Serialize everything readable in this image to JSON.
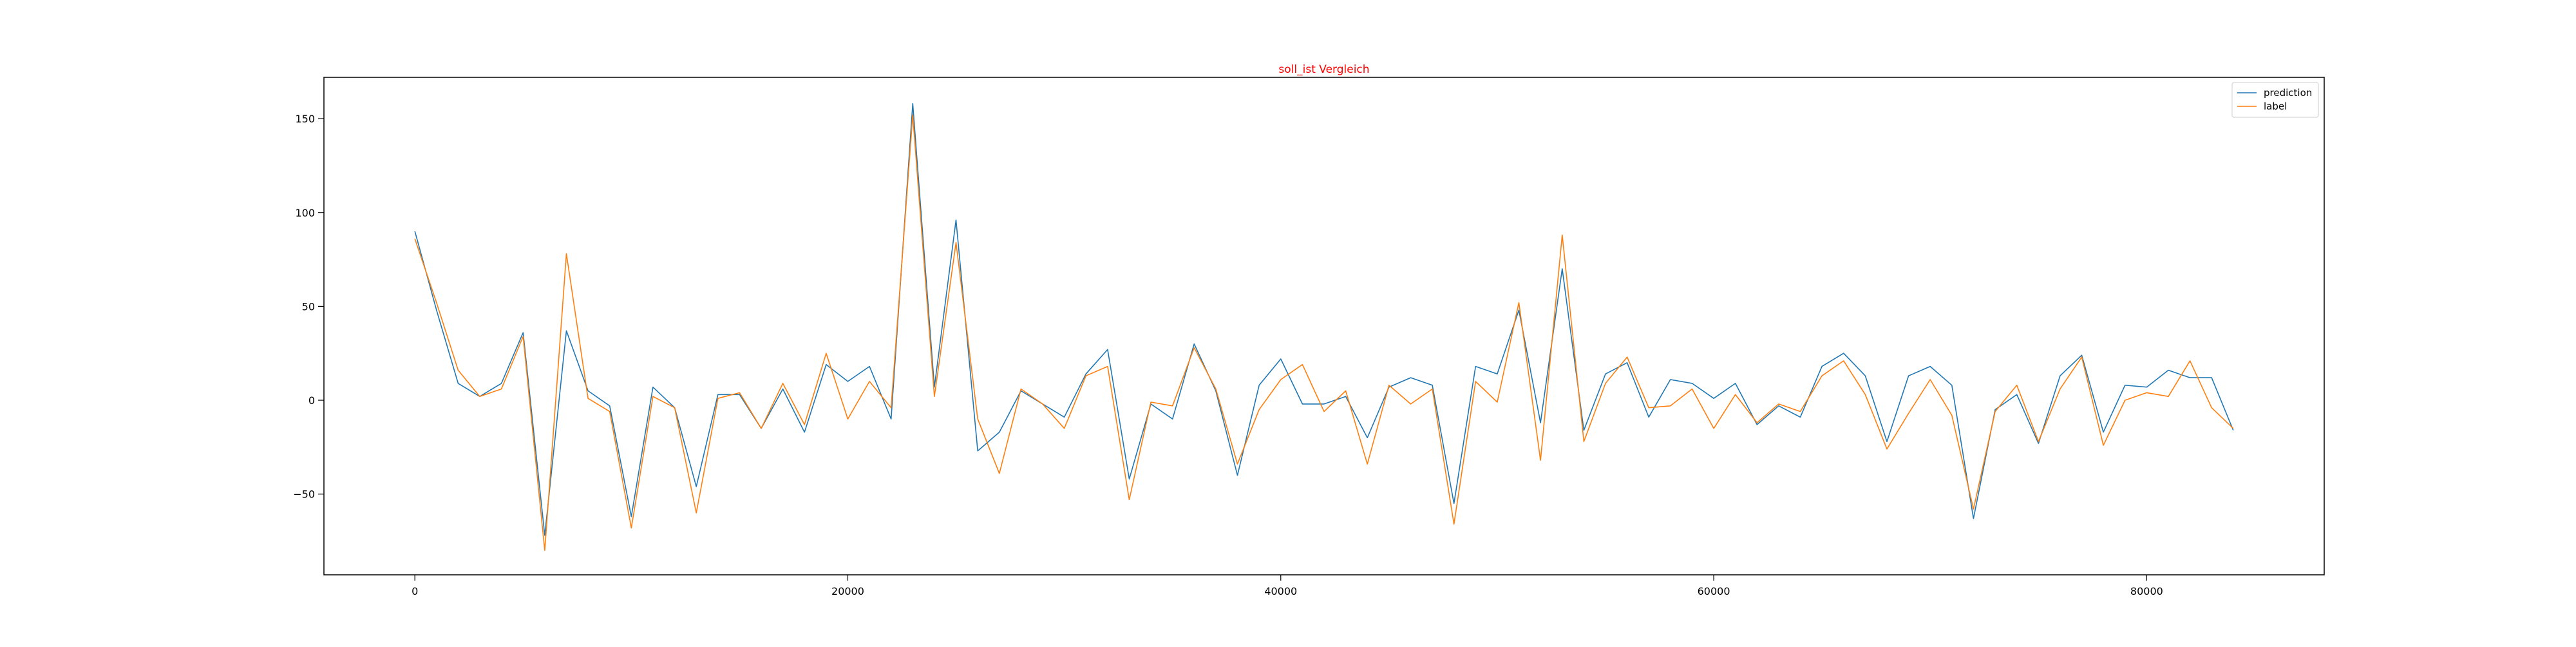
{
  "chart_data": {
    "type": "line",
    "title": "soll_ist Vergleich",
    "title_color": "#ff0000",
    "xlabel": "",
    "ylabel": "",
    "xlim": [
      -4200,
      88200
    ],
    "ylim": [
      -93,
      172
    ],
    "x_ticks": [
      0,
      20000,
      40000,
      60000,
      80000
    ],
    "y_ticks": [
      -50,
      0,
      50,
      100,
      150
    ],
    "grid": false,
    "legend_position": "top-right",
    "x": [
      0,
      1000,
      2000,
      3000,
      4000,
      5000,
      6000,
      7000,
      8000,
      9000,
      10000,
      11000,
      12000,
      13000,
      14000,
      15000,
      16000,
      17000,
      18000,
      19000,
      20000,
      21000,
      22000,
      23000,
      24000,
      25000,
      26000,
      27000,
      28000,
      29000,
      30000,
      31000,
      32000,
      33000,
      34000,
      35000,
      36000,
      37000,
      38000,
      39000,
      40000,
      41000,
      42000,
      43000,
      44000,
      45000,
      46000,
      47000,
      48000,
      49000,
      50000,
      51000,
      52000,
      53000,
      54000,
      55000,
      56000,
      57000,
      58000,
      59000,
      60000,
      61000,
      62000,
      63000,
      64000,
      65000,
      66000,
      67000,
      68000,
      69000,
      70000,
      71000,
      72000,
      73000,
      74000,
      75000,
      76000,
      77000,
      78000,
      79000,
      80000,
      81000,
      82000,
      83000,
      84000
    ],
    "series": [
      {
        "name": "prediction",
        "color": "#1f77b4",
        "values": [
          90,
          48,
          9,
          2,
          9,
          36,
          -72,
          37,
          5,
          -3,
          -62,
          7,
          -4,
          -46,
          3,
          3,
          -15,
          6,
          -17,
          19,
          10,
          18,
          -10,
          158,
          7,
          96,
          -27,
          -17,
          5,
          -2,
          -9,
          14,
          27,
          -42,
          -2,
          -10,
          30,
          5,
          -40,
          8,
          22,
          -2,
          -2,
          2,
          -20,
          7,
          12,
          8,
          -55,
          18,
          14,
          48,
          -12,
          70,
          -16,
          14,
          20,
          -9,
          11,
          9,
          1,
          9,
          -13,
          -3,
          -9,
          18,
          25,
          13,
          -22,
          13,
          18,
          8,
          -63,
          -5,
          3,
          -23,
          13,
          24,
          -17,
          8,
          7,
          16,
          12,
          12,
          -16
        ]
      },
      {
        "name": "label",
        "color": "#ff7f0e",
        "values": [
          86,
          52,
          16,
          2,
          6,
          34,
          -80,
          78,
          1,
          -6,
          -68,
          2,
          -4,
          -60,
          1,
          4,
          -15,
          9,
          -13,
          25,
          -10,
          10,
          -4,
          152,
          2,
          84,
          -10,
          -39,
          6,
          -2,
          -15,
          13,
          18,
          -53,
          -1,
          -3,
          28,
          6,
          -34,
          -5,
          11,
          19,
          -6,
          5,
          -34,
          8,
          -2,
          6,
          -66,
          10,
          -1,
          52,
          -32,
          88,
          -22,
          9,
          23,
          -4,
          -3,
          6,
          -15,
          3,
          -12,
          -2,
          -6,
          13,
          21,
          3,
          -26,
          -7,
          11,
          -8,
          -58,
          -6,
          8,
          -22,
          6,
          23,
          -24,
          0,
          4,
          2,
          21,
          -4,
          -15
        ]
      }
    ]
  }
}
